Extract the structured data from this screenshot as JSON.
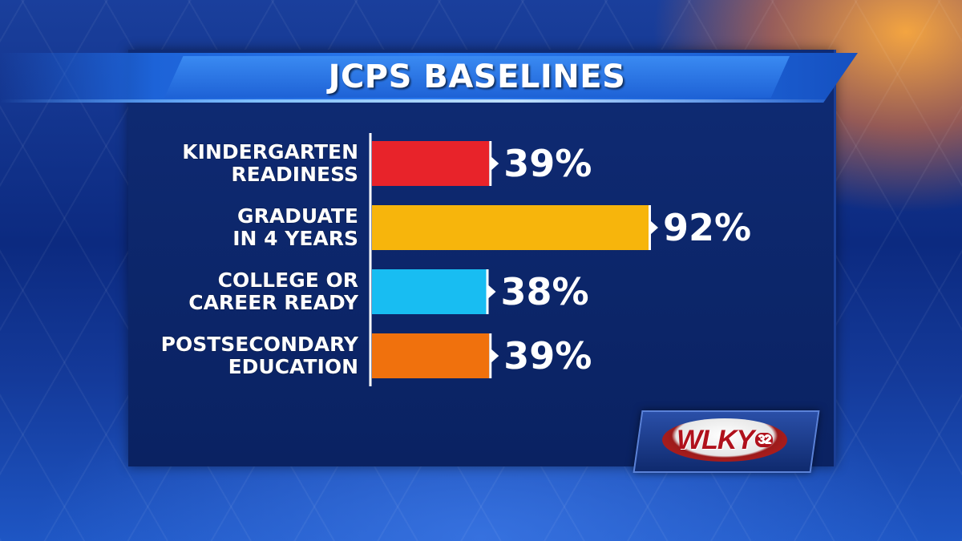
{
  "title": "JCPS BASELINES",
  "logo": {
    "text": "WLKY",
    "channel": "32"
  },
  "chart_data": {
    "type": "bar",
    "orientation": "horizontal",
    "title": "JCPS BASELINES",
    "categories": [
      [
        "KINDERGARTEN",
        "READINESS"
      ],
      [
        "GRADUATE",
        "IN 4 YEARS"
      ],
      [
        "COLLEGE OR",
        "CAREER READY"
      ],
      [
        "POSTSECONDARY",
        "EDUCATION"
      ]
    ],
    "values": [
      39,
      92,
      38,
      39
    ],
    "value_labels": [
      "39%",
      "92%",
      "38%",
      "39%"
    ],
    "colors": [
      "#e8232a",
      "#f7b50c",
      "#18bdf2",
      "#f0710d"
    ],
    "xlim": [
      0,
      100
    ],
    "grid": false,
    "legend": "none"
  }
}
